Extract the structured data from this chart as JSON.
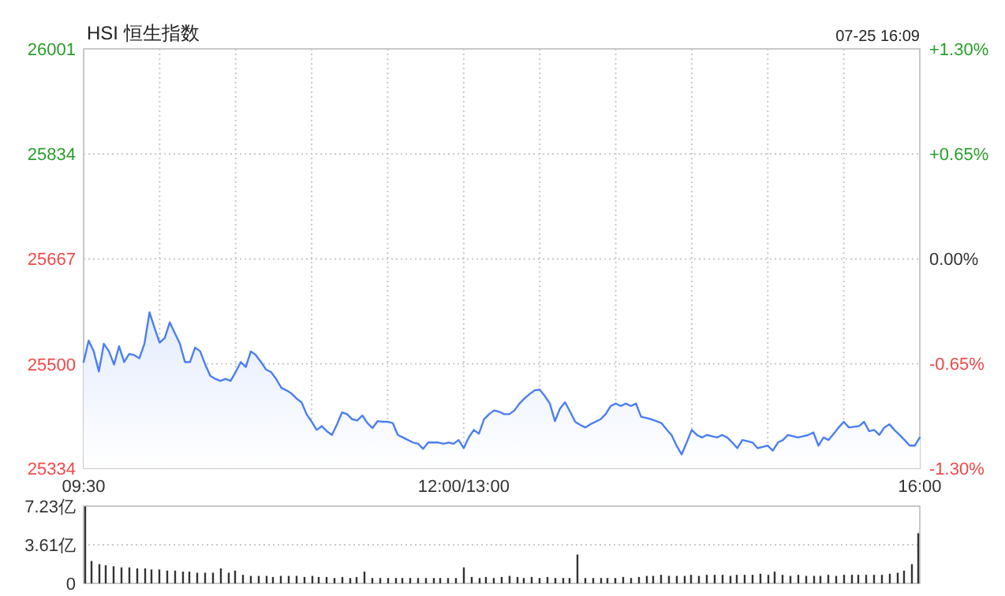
{
  "chart_data": [
    {
      "type": "area",
      "title": "HSI 恒生指数",
      "annotations": [
        "07-25 16:09"
      ],
      "color": "#4a7ff0",
      "grid": true,
      "categories": [
        "09:30",
        null,
        null,
        null,
        null,
        null,
        null,
        null,
        null,
        null,
        null,
        null,
        null,
        null,
        null,
        null,
        null,
        null,
        null,
        null,
        null,
        null,
        null,
        null,
        null,
        null,
        null,
        null,
        null,
        null,
        null,
        null,
        null,
        null,
        null,
        null,
        null,
        null,
        null,
        null,
        null,
        null,
        null,
        null,
        null,
        null,
        null,
        null,
        null,
        null,
        null,
        null,
        null,
        null,
        null,
        null,
        null,
        null,
        null,
        null,
        null,
        null,
        null,
        null,
        null,
        null,
        null,
        null,
        null,
        null,
        null,
        null,
        null,
        null,
        null,
        "12:00/13:00",
        null,
        null,
        null,
        null,
        null,
        null,
        null,
        null,
        null,
        null,
        null,
        null,
        null,
        null,
        null,
        null,
        null,
        null,
        null,
        null,
        null,
        null,
        null,
        null,
        null,
        null,
        null,
        null,
        null,
        null,
        null,
        null,
        null,
        null,
        null,
        null,
        null,
        null,
        null,
        null,
        null,
        null,
        null,
        null,
        null,
        null,
        null,
        null,
        null,
        null,
        null,
        null,
        null,
        null,
        null,
        null,
        null,
        null,
        null,
        null,
        null,
        null,
        null,
        null,
        null,
        null,
        null,
        null,
        null,
        null,
        null,
        null,
        null,
        null,
        null,
        null,
        null,
        null,
        null,
        null,
        null,
        null,
        null,
        null,
        null,
        null,
        null,
        null,
        null,
        "16:00"
      ],
      "values": [
        25503,
        25537,
        25520,
        25488,
        25532,
        25520,
        25499,
        25528,
        25503,
        25516,
        25514,
        25509,
        25532,
        25582,
        25557,
        25534,
        25541,
        25566,
        25549,
        25532,
        25503,
        25503,
        25526,
        25520,
        25499,
        25481,
        25476,
        25473,
        25476,
        25473,
        25487,
        25503,
        25495,
        25520,
        25514,
        25503,
        25491,
        25487,
        25476,
        25462,
        25458,
        25453,
        25445,
        25439,
        25420,
        25408,
        25395,
        25401,
        25393,
        25387,
        25404,
        25423,
        25420,
        25412,
        25410,
        25418,
        25406,
        25398,
        25409,
        25408,
        25408,
        25406,
        25387,
        25383,
        25379,
        25375,
        25373,
        25365,
        25375,
        25375,
        25375,
        25373,
        25375,
        25373,
        25379,
        25366,
        25383,
        25395,
        25389,
        25412,
        25420,
        25426,
        25424,
        25420,
        25420,
        25426,
        25437,
        25445,
        25452,
        25458,
        25459,
        25449,
        25437,
        25409,
        25429,
        25439,
        25424,
        25408,
        25403,
        25399,
        25404,
        25408,
        25412,
        25420,
        25433,
        25437,
        25433,
        25437,
        25433,
        25437,
        25416,
        25414,
        25412,
        25409,
        25406,
        25396,
        25387,
        25370,
        25356,
        25375,
        25395,
        25387,
        25383,
        25387,
        25385,
        25383,
        25387,
        25383,
        25375,
        25366,
        25379,
        25377,
        25375,
        25366,
        25368,
        25370,
        25362,
        25375,
        25379,
        25387,
        25385,
        25383,
        25385,
        25387,
        25391,
        25370,
        25383,
        25379,
        25389,
        25399,
        25408,
        25399,
        25400,
        25401,
        25408,
        25393,
        25395,
        25387,
        25399,
        25404,
        25395,
        25387,
        25379,
        25370,
        25370,
        25383
      ],
      "ylim": [
        25334,
        26001
      ],
      "yticks": [
        25334,
        25500,
        25667,
        25834,
        26001
      ],
      "y2lim": [
        -1.3,
        1.3
      ],
      "y2ticks": [
        {
          "value": -1.3,
          "label": "-1.30%"
        },
        {
          "value": -0.65,
          "label": "-0.65%"
        },
        {
          "value": 0,
          "label": "0.00%"
        },
        {
          "value": 0.65,
          "label": "+0.65%"
        },
        {
          "value": 1.3,
          "label": "+1.30%"
        }
      ]
    },
    {
      "type": "bar",
      "color": "#333333",
      "grid": "y",
      "categories": [
        null,
        null,
        null,
        null,
        null,
        null,
        null,
        null,
        null,
        null,
        null,
        null,
        null,
        null,
        null,
        null,
        null,
        null,
        null,
        null,
        null,
        null,
        null,
        null,
        null,
        null,
        null,
        null,
        null,
        null,
        null,
        null,
        null,
        null,
        null,
        null,
        null,
        null,
        null,
        null,
        null,
        null,
        null,
        null,
        null,
        null,
        null,
        null,
        null,
        null,
        null,
        null,
        null,
        null,
        null,
        null,
        null,
        null,
        null,
        null,
        null,
        null,
        null,
        null,
        null,
        null,
        null,
        null,
        null,
        null,
        null,
        null,
        null,
        null,
        null,
        null,
        null,
        null,
        null,
        null,
        null,
        null,
        null,
        null,
        null,
        null,
        null,
        null,
        null,
        null,
        null,
        null,
        null,
        null,
        null,
        null,
        null,
        null,
        null,
        null,
        null,
        null,
        null,
        null,
        null,
        null,
        null,
        null,
        null,
        null,
        null
      ],
      "values": [
        7.2,
        2.1,
        1.8,
        1.7,
        1.6,
        1.5,
        1.5,
        1.4,
        1.4,
        1.3,
        1.3,
        1.2,
        1.2,
        1.1,
        1.1,
        1.0,
        1.0,
        1.0,
        1.4,
        1.0,
        1.2,
        0.8,
        0.7,
        0.7,
        0.7,
        0.6,
        0.7,
        0.7,
        0.7,
        0.6,
        0.7,
        0.6,
        0.6,
        0.5,
        0.6,
        0.5,
        0.6,
        1.1,
        0.5,
        0.5,
        0.5,
        0.5,
        0.5,
        0.5,
        0.5,
        0.5,
        0.5,
        0.5,
        0.5,
        0.5,
        1.5,
        0.6,
        0.5,
        0.6,
        0.5,
        0.6,
        0.7,
        0.6,
        0.5,
        0.6,
        0.5,
        0.6,
        0.5,
        0.5,
        0.5,
        2.7,
        0.5,
        0.5,
        0.5,
        0.5,
        0.5,
        0.6,
        0.5,
        0.6,
        0.7,
        0.7,
        0.8,
        0.7,
        0.7,
        0.7,
        0.8,
        0.7,
        0.8,
        0.8,
        0.8,
        0.7,
        0.8,
        0.8,
        0.8,
        0.9,
        0.8,
        1.1,
        0.8,
        0.7,
        0.8,
        0.7,
        0.7,
        0.7,
        0.8,
        0.7,
        0.8,
        0.8,
        0.8,
        0.8,
        0.8,
        0.8,
        0.9,
        1.0,
        1.2,
        1.8,
        4.7
      ],
      "ylim": [
        0,
        7.23
      ],
      "yticks": [
        0,
        {
          "value": 3.61,
          "label": "3.61亿"
        },
        {
          "value": 7.23,
          "label": "7.23亿"
        }
      ]
    }
  ]
}
